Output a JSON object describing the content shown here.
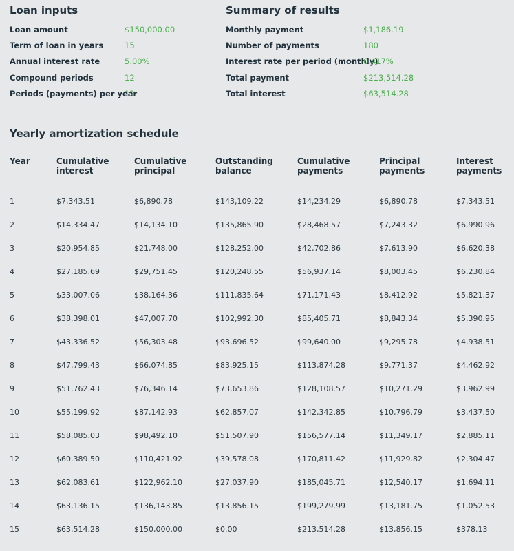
{
  "loan_inputs": {
    "title": "Loan inputs",
    "rows": [
      {
        "label": "Loan amount",
        "value": "$150,000.00"
      },
      {
        "label": "Term of loan in years",
        "value": "15"
      },
      {
        "label": "Annual interest rate",
        "value": "5.00%"
      },
      {
        "label": "Compound periods",
        "value": "12"
      },
      {
        "label": "Periods (payments) per year",
        "value": "12"
      }
    ]
  },
  "summary": {
    "title": "Summary of results",
    "rows": [
      {
        "label": "Monthly payment",
        "value": "$1,186.19"
      },
      {
        "label": "Number of payments",
        "value": "180"
      },
      {
        "label": "Interest rate per period (monthly)",
        "value": "0.417%"
      },
      {
        "label": "Total payment",
        "value": "$213,514.28"
      },
      {
        "label": "Total interest",
        "value": "$63,514.28"
      }
    ]
  },
  "schedule": {
    "title": "Yearly amortization schedule",
    "headers": [
      "Year",
      "Cumulative\ninterest",
      "Cumulative\nprincipal",
      "Outstanding\nbalance",
      "Cumulative\npayments",
      "Principal\npayments",
      "Interest\npayments"
    ],
    "rows": [
      [
        "1",
        "$7,343.51",
        "$6,890.78",
        "$143,109.22",
        "$14,234.29",
        "$6,890.78",
        "$7,343.51"
      ],
      [
        "2",
        "$14,334.47",
        "$14,134.10",
        "$135,865.90",
        "$28,468.57",
        "$7,243.32",
        "$6,990.96"
      ],
      [
        "3",
        "$20,954.85",
        "$21,748.00",
        "$128,252.00",
        "$42,702.86",
        "$7,613.90",
        "$6,620.38"
      ],
      [
        "4",
        "$27,185.69",
        "$29,751.45",
        "$120,248.55",
        "$56,937.14",
        "$8,003.45",
        "$6,230.84"
      ],
      [
        "5",
        "$33,007.06",
        "$38,164.36",
        "$111,835.64",
        "$71,171.43",
        "$8,412.92",
        "$5,821.37"
      ],
      [
        "6",
        "$38,398.01",
        "$47,007.70",
        "$102,992.30",
        "$85,405.71",
        "$8,843.34",
        "$5,390.95"
      ],
      [
        "7",
        "$43,336.52",
        "$56,303.48",
        "$93,696.52",
        "$99,640.00",
        "$9,295.78",
        "$4,938.51"
      ],
      [
        "8",
        "$47,799.43",
        "$66,074.85",
        "$83,925.15",
        "$113,874.28",
        "$9,771.37",
        "$4,462.92"
      ],
      [
        "9",
        "$51,762.43",
        "$76,346.14",
        "$73,653.86",
        "$128,108.57",
        "$10,271.29",
        "$3,962.99"
      ],
      [
        "10",
        "$55,199.92",
        "$87,142.93",
        "$62,857.07",
        "$142,342.85",
        "$10,796.79",
        "$3,437.50"
      ],
      [
        "11",
        "$58,085.03",
        "$98,492.10",
        "$51,507.90",
        "$156,577.14",
        "$11,349.17",
        "$2,885.11"
      ],
      [
        "12",
        "$60,389.50",
        "$110,421.92",
        "$39,578.08",
        "$170,811.42",
        "$11,929.82",
        "$2,304.47"
      ],
      [
        "13",
        "$62,083.61",
        "$122,962.10",
        "$27,037.90",
        "$185,045.71",
        "$12,540.17",
        "$1,694.11"
      ],
      [
        "14",
        "$63,136.15",
        "$136,143.85",
        "$13,856.15",
        "$199,279.99",
        "$13,181.75",
        "$1,052.53"
      ],
      [
        "15",
        "$63,514.28",
        "$150,000.00",
        "$0.00",
        "$213,514.28",
        "$13,856.15",
        "$378.13"
      ]
    ]
  }
}
